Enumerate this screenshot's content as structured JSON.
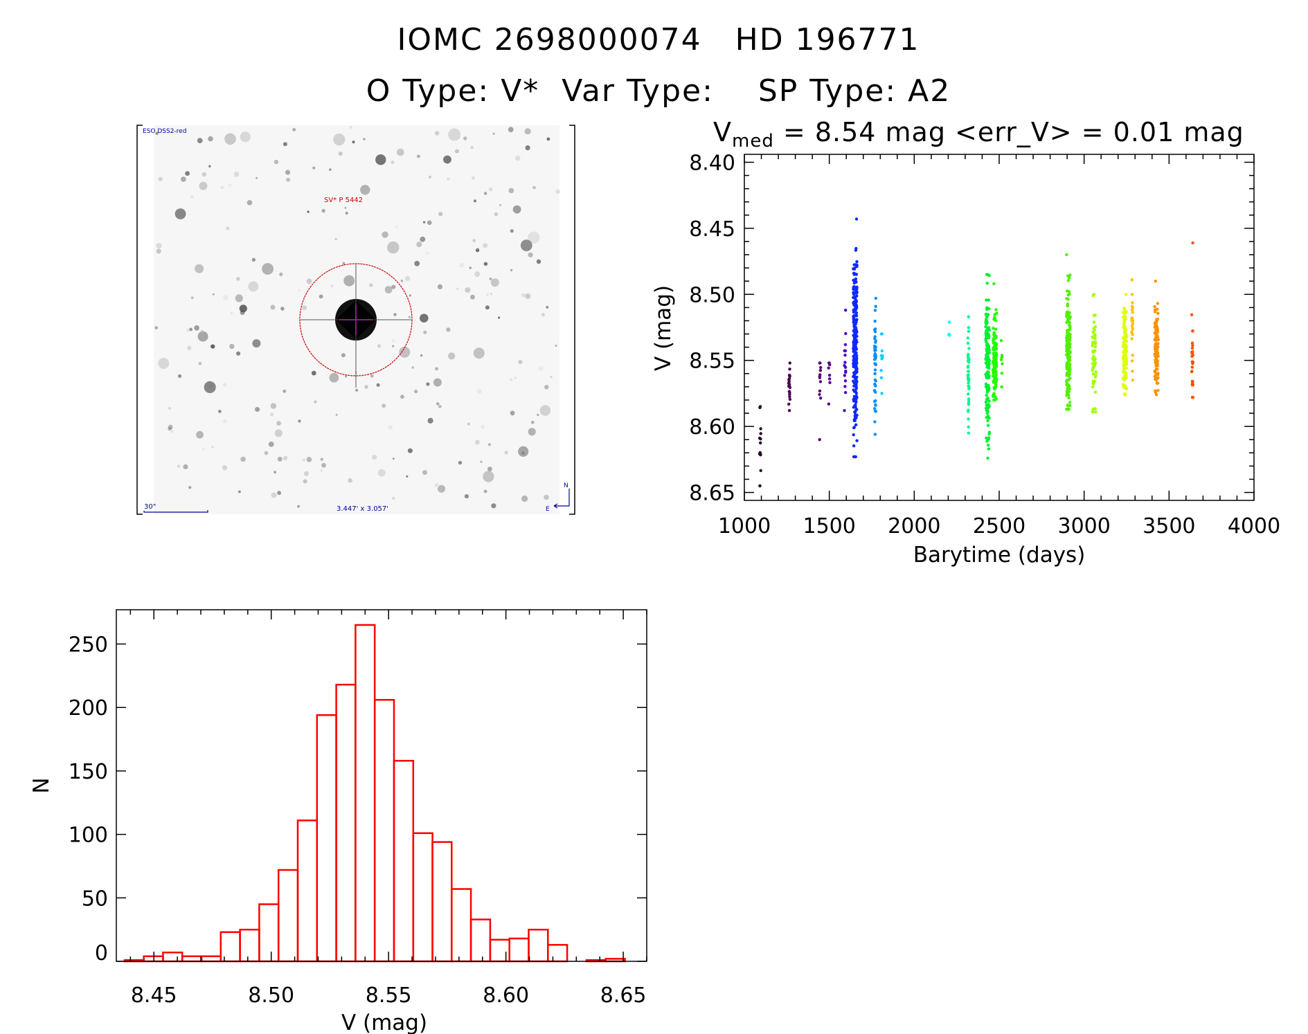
{
  "header": {
    "title_line1": "IOMC 2698000074   HD 196771",
    "title_line2": "O Type: V*  Var Type:    SP Type: A2",
    "vmed_label": "V",
    "vmed_sub": "med",
    "vmed_rest": " = 8.54 mag <err_V> = 0.01 mag"
  },
  "finder_image": {
    "survey_label": "ESO DSS2-red",
    "object_label": "SV* P 5442",
    "scale_label": "30\"",
    "fov_label": "3.447' x 3.057'",
    "north_label": "N",
    "east_label": "E",
    "circle_color": "#cc0000",
    "label_color": "#000099"
  },
  "chart_data": [
    {
      "type": "scatter",
      "xlabel": "Barytime (days)",
      "ylabel": "V (mag)",
      "xlim": [
        1000,
        4000
      ],
      "ylim": [
        8.394,
        8.656
      ],
      "y_inverted": true,
      "xticks": [
        "1000",
        "1500",
        "2000",
        "2500",
        "3000",
        "3500",
        "4000"
      ],
      "yticks": [
        "8.40",
        "8.45",
        "8.50",
        "8.55",
        "8.60",
        "8.65"
      ],
      "grid": false,
      "color_by": "time",
      "clusters": [
        {
          "x": 1093,
          "y_center": 8.615,
          "y_min": 8.585,
          "y_max": 8.645,
          "n": 15,
          "color": "#2a0028"
        },
        {
          "x": 1265,
          "y_center": 8.57,
          "y_min": 8.552,
          "y_max": 8.588,
          "n": 20,
          "color": "#4a0052"
        },
        {
          "x": 1446,
          "y_center": 8.565,
          "y_min": 8.552,
          "y_max": 8.61,
          "n": 12,
          "color": "#5a0078"
        },
        {
          "x": 1500,
          "y_center": 8.56,
          "y_min": 8.552,
          "y_max": 8.583,
          "n": 8,
          "color": "#5a0088"
        },
        {
          "x": 1593,
          "y_center": 8.55,
          "y_min": 8.512,
          "y_max": 8.588,
          "n": 16,
          "color": "#4800c8"
        },
        {
          "x": 1652,
          "y_center": 8.535,
          "y_min": 8.443,
          "y_max": 8.623,
          "n": 260,
          "color": "#1028ff"
        },
        {
          "x": 1770,
          "y_center": 8.555,
          "y_min": 8.503,
          "y_max": 8.606,
          "n": 50,
          "color": "#0090ff"
        },
        {
          "x": 1809,
          "y_center": 8.55,
          "y_min": 8.53,
          "y_max": 8.575,
          "n": 10,
          "color": "#00d0ff"
        },
        {
          "x": 2206,
          "y_center": 8.526,
          "y_min": 8.521,
          "y_max": 8.531,
          "n": 4,
          "color": "#00ffff"
        },
        {
          "x": 2319,
          "y_center": 8.56,
          "y_min": 8.517,
          "y_max": 8.605,
          "n": 40,
          "color": "#00f590"
        },
        {
          "x": 2432,
          "y_center": 8.555,
          "y_min": 8.485,
          "y_max": 8.624,
          "n": 150,
          "color": "#00f030"
        },
        {
          "x": 2475,
          "y_center": 8.55,
          "y_min": 8.492,
          "y_max": 8.58,
          "n": 120,
          "color": "#20ff00"
        },
        {
          "x": 2515,
          "y_center": 8.55,
          "y_min": 8.535,
          "y_max": 8.57,
          "n": 8,
          "color": "#30f000"
        },
        {
          "x": 2907,
          "y_center": 8.545,
          "y_min": 8.47,
          "y_max": 8.587,
          "n": 180,
          "color": "#50f000"
        },
        {
          "x": 3059,
          "y_center": 8.55,
          "y_min": 8.5,
          "y_max": 8.589,
          "n": 60,
          "color": "#a0ff00"
        },
        {
          "x": 3240,
          "y_center": 8.545,
          "y_min": 8.5,
          "y_max": 8.576,
          "n": 120,
          "color": "#e0ff00"
        },
        {
          "x": 3284,
          "y_center": 8.53,
          "y_min": 8.489,
          "y_max": 8.565,
          "n": 25,
          "color": "#ffc000"
        },
        {
          "x": 3426,
          "y_center": 8.54,
          "y_min": 8.49,
          "y_max": 8.576,
          "n": 100,
          "color": "#ff9000"
        },
        {
          "x": 3637,
          "y_center": 8.55,
          "y_min": 8.461,
          "y_max": 8.578,
          "n": 30,
          "color": "#ff5000"
        }
      ]
    },
    {
      "type": "bar",
      "style": "histogram",
      "xlabel": "V (mag)",
      "ylabel": "N",
      "xlim": [
        8.434,
        8.66
      ],
      "ylim": [
        0,
        277
      ],
      "xticks": [
        "8.45",
        "8.50",
        "8.55",
        "8.60",
        "8.65"
      ],
      "yticks": [
        "0",
        "50",
        "100",
        "150",
        "200",
        "250"
      ],
      "bin_start": 8.4375,
      "bin_width": 0.0082,
      "counts": [
        1,
        4,
        7,
        4,
        4,
        23,
        25,
        45,
        72,
        111,
        194,
        218,
        265,
        206,
        158,
        101,
        94,
        57,
        33,
        17,
        18,
        25,
        13,
        0,
        1,
        2
      ],
      "bar_color": "#ff0000",
      "grid": false
    }
  ]
}
